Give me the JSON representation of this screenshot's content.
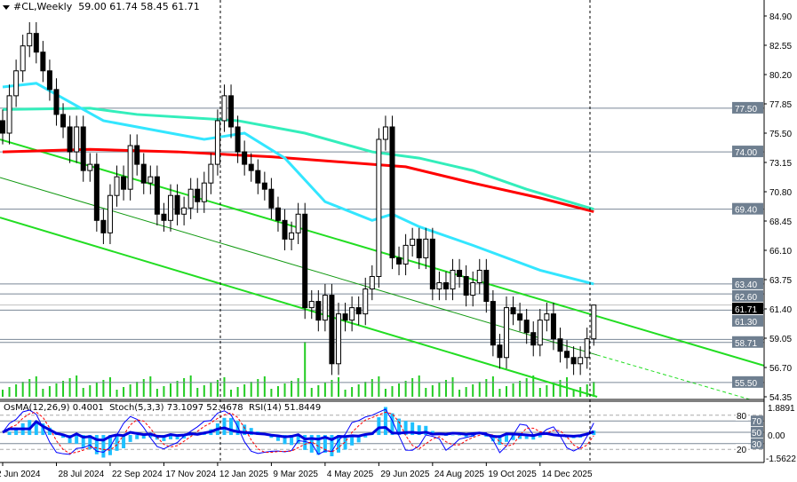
{
  "header": {
    "symbol": "#CL,Weekly",
    "ohlc": "59.00 61.74 58.45 61.71"
  },
  "indicator_header": {
    "osma": "OsMA(12,26,9) 0.4001",
    "stoch": "Stoch(5,3,3) 73.1097 52.4678",
    "rsi": "RSI(14) 51.8449"
  },
  "colors": {
    "bull_body": "#ffffff",
    "bear_body": "#000000",
    "ma_red": "#ff0000",
    "ma_cyan": "#33e6ff",
    "ma_teal": "#33eebb",
    "channel": "#22dd22",
    "level_line": "#7a8796",
    "label_bg": "#6f7f90",
    "volume": "#22cc22",
    "osma": "#1ec0ff",
    "rsi": "#0000dd",
    "stoch_main": "#0000ff",
    "stoch_signal": "#ff0000"
  },
  "chart_data": {
    "type": "candlestick",
    "ylim": [
      54.35,
      84.9
    ],
    "price_ticks": [
      "84.90",
      "82.55",
      "80.20",
      "77.85",
      "75.50",
      "73.15",
      "70.80",
      "68.45",
      "66.10",
      "63.75",
      "61.40",
      "59.05",
      "56.70",
      "54.35"
    ],
    "time_labels": [
      "2 Jun 2024",
      "28 Jul 2024",
      "22 Sep 2024",
      "17 Nov 2024",
      "12 Jan 2025",
      "9 Mar 2025",
      "4 May 2025",
      "29 Jun 2025",
      "24 Aug 2025",
      "19 Oct 2025",
      "14 Dec 2025"
    ],
    "closes": [
      75.5,
      78.5,
      80.5,
      82.5,
      83.5,
      82.0,
      80.5,
      79.0,
      77.0,
      76.0,
      74.0,
      76.0,
      72.5,
      73.0,
      68.5,
      67.5,
      70.5,
      72.0,
      71.0,
      74.5,
      73.0,
      71.5,
      72.0,
      69.0,
      68.5,
      70.5,
      69.0,
      69.5,
      71.0,
      70.0,
      71.5,
      73.0,
      76.5,
      78.5,
      76.0,
      74.0,
      73.0,
      72.5,
      71.5,
      71.0,
      69.5,
      68.5,
      67.0,
      67.5,
      69.0,
      61.5,
      62.0,
      60.5,
      62.5,
      57.0,
      61.0,
      60.5,
      61.5,
      61.0,
      63.0,
      64.0,
      75.0,
      76.0,
      65.5,
      65.0,
      66.5,
      67.0,
      65.5,
      67.0,
      63.0,
      63.5,
      63.0,
      64.5,
      64.0,
      62.5,
      63.5,
      64.5,
      62.0,
      58.5,
      57.5,
      61.5,
      61.0,
      60.5,
      59.5,
      58.5,
      60.5,
      61.0,
      59.0,
      58.0,
      57.5,
      57.0,
      57.5,
      59.0,
      61.71
    ],
    "last_bar": {
      "open": 59.0,
      "high": 61.74,
      "low": 58.45,
      "close": 61.71
    },
    "moving_averages": [
      {
        "color": "#ff0000",
        "points": [
          [
            0,
            74.0
          ],
          [
            13,
            74.2
          ],
          [
            26,
            74.0
          ],
          [
            40,
            73.6
          ],
          [
            55,
            73.0
          ],
          [
            60,
            72.8
          ],
          [
            70,
            71.5
          ],
          [
            80,
            70.3
          ],
          [
            88,
            69.2
          ]
        ]
      },
      {
        "color": "#33eebb",
        "points": [
          [
            0,
            77.4
          ],
          [
            13,
            77.5
          ],
          [
            20,
            77.0
          ],
          [
            35,
            76.5
          ],
          [
            45,
            75.5
          ],
          [
            55,
            74.0
          ],
          [
            62,
            73.5
          ],
          [
            70,
            72.5
          ],
          [
            78,
            71.0
          ],
          [
            88,
            69.4
          ]
        ]
      },
      {
        "color": "#33e6ff",
        "points": [
          [
            0,
            79.2
          ],
          [
            5,
            79.5
          ],
          [
            10,
            78.0
          ],
          [
            15,
            76.5
          ],
          [
            25,
            75.5
          ],
          [
            30,
            75.0
          ],
          [
            36,
            75.5
          ],
          [
            42,
            73.5
          ],
          [
            48,
            70.0
          ],
          [
            55,
            68.5
          ],
          [
            58,
            69.0
          ],
          [
            62,
            68.0
          ],
          [
            70,
            66.5
          ],
          [
            80,
            64.5
          ],
          [
            88,
            63.4
          ]
        ]
      }
    ],
    "channel": [
      {
        "from": [
          -0.4,
          75.0
        ],
        "to": [
          113.4,
          56.84
        ],
        "style": "solid"
      },
      {
        "from": [
          -0.4,
          71.94
        ],
        "to": [
          88.5,
          57.7
        ],
        "style": "thin"
      },
      {
        "from": [
          88.5,
          57.7
        ],
        "to": [
          113.4,
          53.8
        ],
        "style": "dashed"
      },
      {
        "from": [
          -0.4,
          68.73
        ],
        "to": [
          88.5,
          54.35
        ],
        "style": "solid"
      }
    ],
    "levels": [
      "77.50",
      "74.00",
      "69.40",
      "63.40",
      "62.60",
      "61.30",
      "58.71",
      "55.50"
    ],
    "current_price": "61.71",
    "indicator_axis": {
      "top": "1.8891",
      "bottom": "-1.5622",
      "zero": "0.00",
      "stoch_levels": [
        "80",
        "70",
        "50",
        "30",
        "20"
      ]
    }
  }
}
